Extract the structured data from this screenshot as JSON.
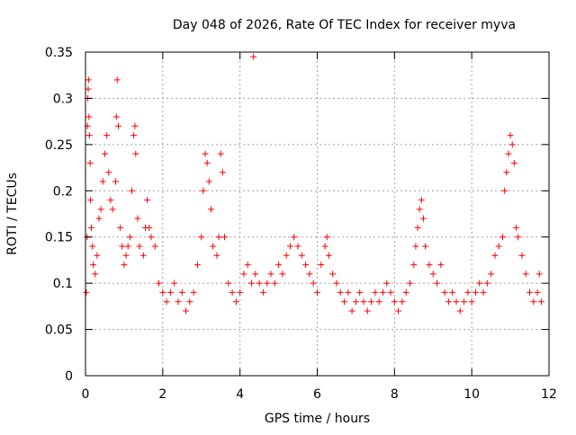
{
  "chart_data": {
    "type": "scatter",
    "title": "Day 048 of 2026, Rate Of TEC Index for receiver myva",
    "xlabel": "GPS time / hours",
    "ylabel": "ROTI / TECUs",
    "xlim": [
      0,
      12
    ],
    "ylim": [
      0,
      0.35
    ],
    "x_ticks": [
      0,
      2,
      4,
      6,
      8,
      10,
      12
    ],
    "x_tick_labels": [
      "0",
      "2",
      "4",
      "6",
      "8",
      "10",
      "12"
    ],
    "y_ticks": [
      0,
      0.05,
      0.1,
      0.15,
      0.2,
      0.25,
      0.3,
      0.35
    ],
    "y_tick_labels": [
      "0",
      "0.05",
      "0.1",
      "0.15",
      "0.2",
      "0.25",
      "0.3",
      "0.35"
    ],
    "grid": true,
    "marker": "+",
    "marker_color": "#ff0000",
    "series": [
      {
        "name": "ROTI",
        "points": [
          [
            0.02,
            0.09
          ],
          [
            0.04,
            0.15
          ],
          [
            0.05,
            0.27
          ],
          [
            0.06,
            0.3
          ],
          [
            0.07,
            0.31
          ],
          [
            0.08,
            0.32
          ],
          [
            0.09,
            0.28
          ],
          [
            0.1,
            0.26
          ],
          [
            0.12,
            0.23
          ],
          [
            0.13,
            0.19
          ],
          [
            0.15,
            0.16
          ],
          [
            0.18,
            0.14
          ],
          [
            0.2,
            0.12
          ],
          [
            0.25,
            0.11
          ],
          [
            0.3,
            0.13
          ],
          [
            0.35,
            0.17
          ],
          [
            0.4,
            0.18
          ],
          [
            0.45,
            0.21
          ],
          [
            0.5,
            0.24
          ],
          [
            0.55,
            0.26
          ],
          [
            0.6,
            0.22
          ],
          [
            0.65,
            0.19
          ],
          [
            0.7,
            0.18
          ],
          [
            0.78,
            0.21
          ],
          [
            0.8,
            0.28
          ],
          [
            0.82,
            0.32
          ],
          [
            0.85,
            0.27
          ],
          [
            0.9,
            0.16
          ],
          [
            0.95,
            0.14
          ],
          [
            1.0,
            0.12
          ],
          [
            1.05,
            0.13
          ],
          [
            1.1,
            0.14
          ],
          [
            1.15,
            0.15
          ],
          [
            1.2,
            0.2
          ],
          [
            1.25,
            0.26
          ],
          [
            1.28,
            0.27
          ],
          [
            1.3,
            0.24
          ],
          [
            1.35,
            0.17
          ],
          [
            1.4,
            0.14
          ],
          [
            1.5,
            0.13
          ],
          [
            1.55,
            0.16
          ],
          [
            1.6,
            0.19
          ],
          [
            1.65,
            0.16
          ],
          [
            1.7,
            0.15
          ],
          [
            1.8,
            0.14
          ],
          [
            1.9,
            0.1
          ],
          [
            2.0,
            0.09
          ],
          [
            2.1,
            0.08
          ],
          [
            2.2,
            0.09
          ],
          [
            2.3,
            0.1
          ],
          [
            2.4,
            0.08
          ],
          [
            2.5,
            0.09
          ],
          [
            2.6,
            0.07
          ],
          [
            2.7,
            0.08
          ],
          [
            2.8,
            0.09
          ],
          [
            2.9,
            0.12
          ],
          [
            3.0,
            0.15
          ],
          [
            3.05,
            0.2
          ],
          [
            3.1,
            0.24
          ],
          [
            3.15,
            0.23
          ],
          [
            3.2,
            0.21
          ],
          [
            3.25,
            0.18
          ],
          [
            3.3,
            0.14
          ],
          [
            3.4,
            0.13
          ],
          [
            3.45,
            0.15
          ],
          [
            3.5,
            0.24
          ],
          [
            3.55,
            0.22
          ],
          [
            3.6,
            0.15
          ],
          [
            3.7,
            0.1
          ],
          [
            3.8,
            0.09
          ],
          [
            3.9,
            0.08
          ],
          [
            4.0,
            0.09
          ],
          [
            4.1,
            0.11
          ],
          [
            4.2,
            0.12
          ],
          [
            4.3,
            0.1
          ],
          [
            4.35,
            0.345
          ],
          [
            4.4,
            0.11
          ],
          [
            4.5,
            0.1
          ],
          [
            4.6,
            0.09
          ],
          [
            4.7,
            0.1
          ],
          [
            4.8,
            0.11
          ],
          [
            4.9,
            0.1
          ],
          [
            5.0,
            0.12
          ],
          [
            5.1,
            0.11
          ],
          [
            5.2,
            0.13
          ],
          [
            5.3,
            0.14
          ],
          [
            5.4,
            0.15
          ],
          [
            5.5,
            0.14
          ],
          [
            5.6,
            0.13
          ],
          [
            5.7,
            0.12
          ],
          [
            5.8,
            0.11
          ],
          [
            5.9,
            0.1
          ],
          [
            6.0,
            0.09
          ],
          [
            6.1,
            0.12
          ],
          [
            6.2,
            0.14
          ],
          [
            6.25,
            0.15
          ],
          [
            6.3,
            0.13
          ],
          [
            6.4,
            0.11
          ],
          [
            6.5,
            0.1
          ],
          [
            6.6,
            0.09
          ],
          [
            6.7,
            0.08
          ],
          [
            6.8,
            0.09
          ],
          [
            6.9,
            0.07
          ],
          [
            7.0,
            0.08
          ],
          [
            7.1,
            0.09
          ],
          [
            7.2,
            0.08
          ],
          [
            7.3,
            0.07
          ],
          [
            7.4,
            0.08
          ],
          [
            7.5,
            0.09
          ],
          [
            7.6,
            0.08
          ],
          [
            7.7,
            0.09
          ],
          [
            7.8,
            0.1
          ],
          [
            7.9,
            0.09
          ],
          [
            8.0,
            0.08
          ],
          [
            8.1,
            0.07
          ],
          [
            8.2,
            0.08
          ],
          [
            8.3,
            0.09
          ],
          [
            8.4,
            0.1
          ],
          [
            8.5,
            0.12
          ],
          [
            8.55,
            0.14
          ],
          [
            8.6,
            0.16
          ],
          [
            8.65,
            0.18
          ],
          [
            8.7,
            0.19
          ],
          [
            8.75,
            0.17
          ],
          [
            8.8,
            0.14
          ],
          [
            8.9,
            0.12
          ],
          [
            9.0,
            0.11
          ],
          [
            9.1,
            0.1
          ],
          [
            9.2,
            0.12
          ],
          [
            9.3,
            0.09
          ],
          [
            9.4,
            0.08
          ],
          [
            9.5,
            0.09
          ],
          [
            9.6,
            0.08
          ],
          [
            9.7,
            0.07
          ],
          [
            9.8,
            0.08
          ],
          [
            9.9,
            0.09
          ],
          [
            10.0,
            0.08
          ],
          [
            10.1,
            0.09
          ],
          [
            10.2,
            0.1
          ],
          [
            10.3,
            0.09
          ],
          [
            10.4,
            0.1
          ],
          [
            10.5,
            0.11
          ],
          [
            10.6,
            0.13
          ],
          [
            10.7,
            0.14
          ],
          [
            10.8,
            0.15
          ],
          [
            10.85,
            0.2
          ],
          [
            10.9,
            0.22
          ],
          [
            10.95,
            0.24
          ],
          [
            11.0,
            0.26
          ],
          [
            11.05,
            0.25
          ],
          [
            11.1,
            0.23
          ],
          [
            11.15,
            0.16
          ],
          [
            11.2,
            0.15
          ],
          [
            11.3,
            0.13
          ],
          [
            11.4,
            0.11
          ],
          [
            11.5,
            0.09
          ],
          [
            11.6,
            0.08
          ],
          [
            11.7,
            0.09
          ],
          [
            11.75,
            0.11
          ],
          [
            11.8,
            0.08
          ]
        ]
      }
    ]
  }
}
